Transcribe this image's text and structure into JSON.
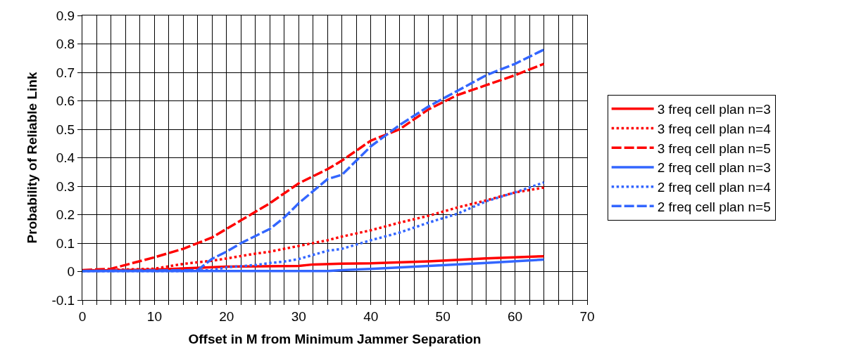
{
  "chart_data": {
    "type": "line",
    "xlabel": "Offset in M from Minimum Jammer Separation",
    "ylabel": "Probability of Reliable Link",
    "xlim": [
      0,
      70
    ],
    "xticks": [
      0,
      {
        "value": 2,
        "label": null
      },
      {
        "value": 4,
        "label": null
      },
      {
        "value": 6,
        "label": null
      },
      {
        "value": 8,
        "label": null
      },
      10,
      {
        "value": 12,
        "label": null
      },
      {
        "value": 14,
        "label": null
      },
      {
        "value": 16,
        "label": null
      },
      {
        "value": 18,
        "label": null
      },
      20,
      {
        "value": 22,
        "label": null
      },
      {
        "value": 24,
        "label": null
      },
      {
        "value": 26,
        "label": null
      },
      {
        "value": 28,
        "label": null
      },
      30,
      {
        "value": 32,
        "label": null
      },
      {
        "value": 34,
        "label": null
      },
      {
        "value": 36,
        "label": null
      },
      {
        "value": 38,
        "label": null
      },
      40,
      {
        "value": 42,
        "label": null
      },
      {
        "value": 44,
        "label": null
      },
      {
        "value": 46,
        "label": null
      },
      {
        "value": 48,
        "label": null
      },
      50,
      {
        "value": 52,
        "label": null
      },
      {
        "value": 54,
        "label": null
      },
      {
        "value": 56,
        "label": null
      },
      {
        "value": 58,
        "label": null
      },
      60,
      {
        "value": 62,
        "label": null
      },
      {
        "value": 64,
        "label": null
      },
      {
        "value": 66,
        "label": null
      },
      {
        "value": 68,
        "label": null
      },
      70
    ],
    "ylim": [
      -0.1,
      0.9
    ],
    "yticks": [
      -0.1,
      0,
      0.1,
      0.2,
      0.3,
      0.4,
      0.5,
      0.6,
      0.7,
      0.8,
      0.9
    ],
    "grid": true,
    "legend": "right",
    "marker": "none",
    "series": [
      {
        "name": "3 freq cell plan n=3",
        "color": "#ff0000",
        "line_style": "solid",
        "x": [
          0,
          10,
          20,
          30,
          32,
          36,
          40,
          48,
          56,
          64
        ],
        "values": [
          0.003,
          0.007,
          0.017,
          0.02,
          0.025,
          0.028,
          0.029,
          0.036,
          0.046,
          0.054
        ]
      },
      {
        "name": "3 freq cell plan n=4",
        "color": "#ff0000",
        "line_style": "dotted",
        "x": [
          0,
          10,
          14,
          18,
          20,
          24,
          26,
          30,
          34,
          36,
          40,
          44,
          48,
          52,
          56,
          60,
          64
        ],
        "values": [
          0.003,
          0.01,
          0.027,
          0.038,
          0.046,
          0.063,
          0.07,
          0.09,
          0.11,
          0.123,
          0.145,
          0.172,
          0.196,
          0.225,
          0.25,
          0.278,
          0.295
        ]
      },
      {
        "name": "3 freq cell plan n=5",
        "color": "#ff0000",
        "line_style": "dashed",
        "x": [
          0,
          4,
          10,
          14,
          18,
          22,
          26,
          30,
          34,
          36,
          40,
          44,
          48,
          52,
          56,
          60,
          64
        ],
        "values": [
          0.005,
          0.01,
          0.05,
          0.08,
          0.12,
          0.18,
          0.24,
          0.31,
          0.36,
          0.39,
          0.46,
          0.5,
          0.57,
          0.62,
          0.655,
          0.69,
          0.73
        ]
      },
      {
        "name": "2 freq cell plan n=3",
        "color": "#3366ff",
        "line_style": "solid",
        "x": [
          0,
          20,
          34,
          36,
          40,
          48,
          56,
          64
        ],
        "values": [
          0.002,
          0.002,
          0.002,
          0.005,
          0.009,
          0.02,
          0.03,
          0.042
        ]
      },
      {
        "name": "2 freq cell plan n=4",
        "color": "#3366ff",
        "line_style": "dotted",
        "x": [
          0,
          14,
          18,
          20,
          24,
          26,
          28,
          30,
          34,
          36,
          40,
          44,
          48,
          52,
          56,
          60,
          64
        ],
        "values": [
          0.002,
          0.002,
          0.005,
          0.015,
          0.023,
          0.03,
          0.035,
          0.044,
          0.073,
          0.08,
          0.11,
          0.137,
          0.172,
          0.203,
          0.247,
          0.278,
          0.313
        ]
      },
      {
        "name": "2 freq cell plan n=5",
        "color": "#3366ff",
        "line_style": "dashed",
        "x": [
          0,
          16,
          18,
          20,
          22,
          26,
          28,
          30,
          34,
          36,
          40,
          44,
          48,
          52,
          56,
          60,
          64
        ],
        "values": [
          0.002,
          0.005,
          0.045,
          0.07,
          0.1,
          0.15,
          0.19,
          0.24,
          0.325,
          0.34,
          0.44,
          0.515,
          0.58,
          0.635,
          0.69,
          0.73,
          0.78
        ]
      }
    ]
  }
}
